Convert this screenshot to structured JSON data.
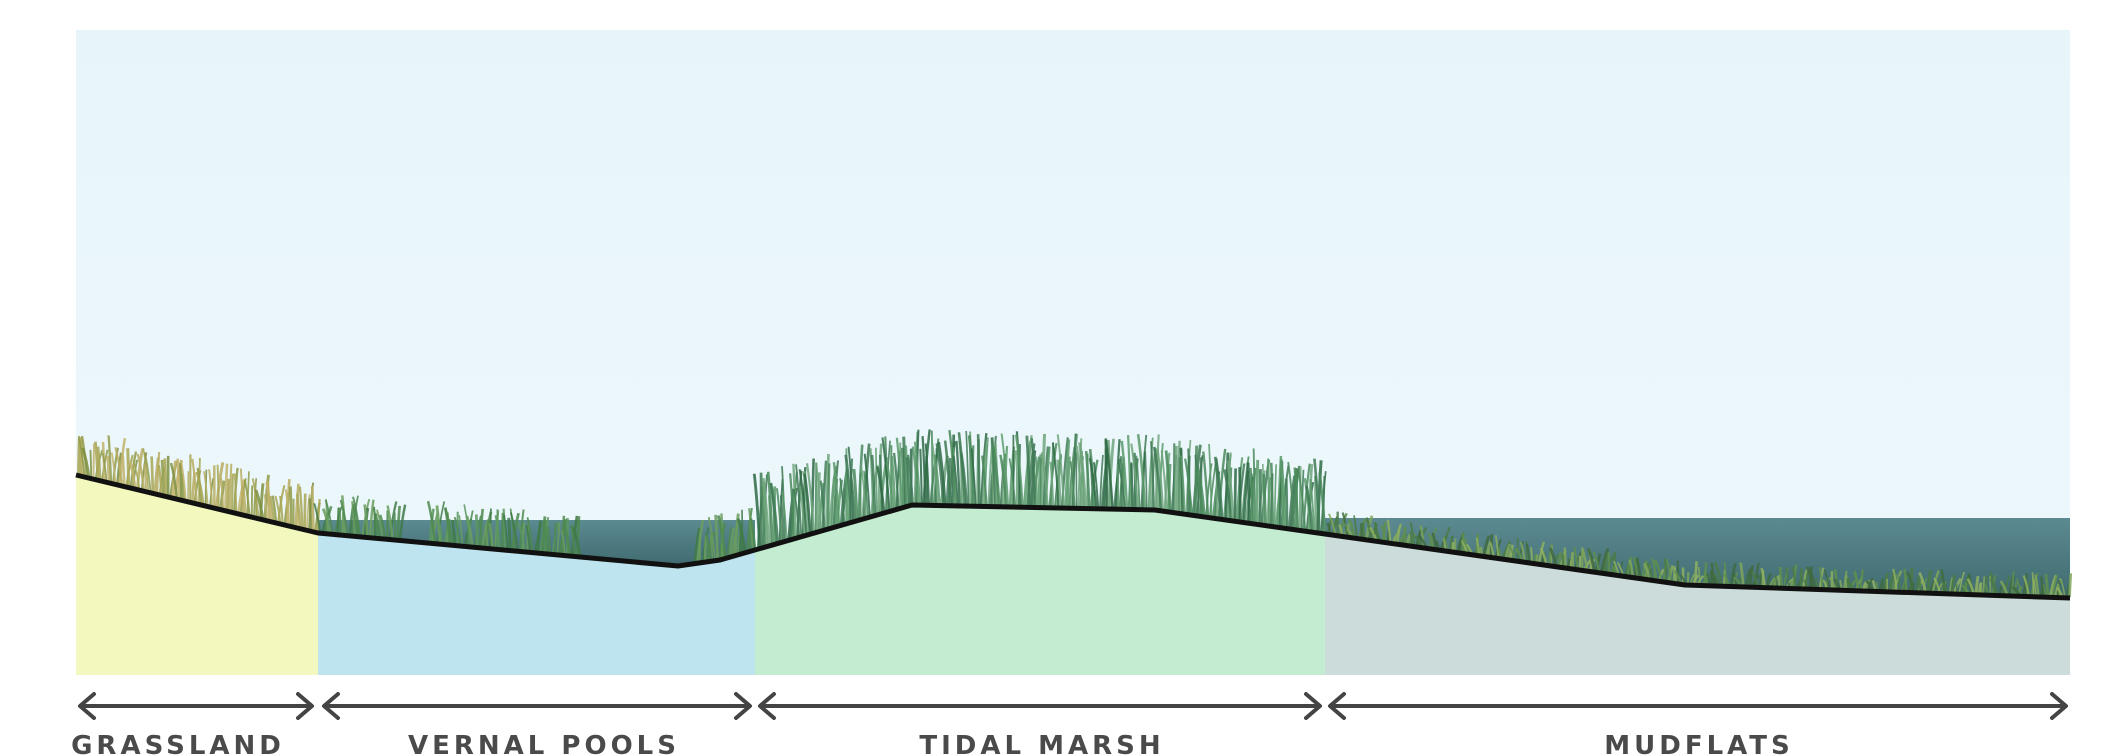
{
  "zones": [
    {
      "label": "GRASSLAND",
      "color": "#f3f8bf"
    },
    {
      "label": "VERNAL POOLS",
      "color": "#bde4ef"
    },
    {
      "label": "TIDAL MARSH",
      "color": "#c3ecd0"
    },
    {
      "label": "MUDFLATS",
      "color": "#cbdcdb"
    }
  ],
  "colors": {
    "sky": "#eaf6fb",
    "water": "#4e7a80",
    "ground_line": "#111111",
    "arrow": "#444444",
    "grass_dry": "#a8a653",
    "grass_green": "#4f8a4f"
  }
}
